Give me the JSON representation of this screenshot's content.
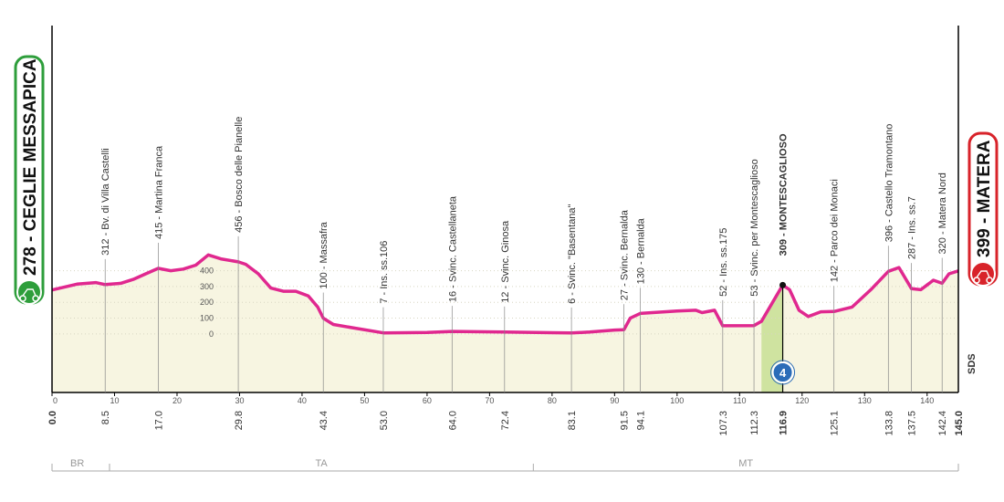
{
  "chart_data": {
    "type": "profile",
    "start": {
      "label": "278 - CEGLIE MESSAPICA",
      "km": {
        "value": 0,
        "label": "0.0"
      },
      "color": "#2e9e3b"
    },
    "finish": {
      "label": "399 - MATERA",
      "km": {
        "value": 145,
        "label": "145.0"
      },
      "color": "#d8232a"
    },
    "profile": {
      "km": [
        0,
        4,
        7,
        8.5,
        11,
        13,
        15,
        17,
        19,
        21,
        23,
        25,
        27,
        29.8,
        31,
        33,
        35,
        37,
        39,
        41,
        42.5,
        43.4,
        45,
        48,
        53,
        60,
        64,
        72.4,
        80,
        83.1,
        86,
        90,
        91.5,
        92.5,
        94.1,
        100,
        103,
        104,
        106,
        107.3,
        112.3,
        113.5,
        116.9,
        118,
        119.5,
        121,
        123,
        125.1,
        128,
        131,
        133.8,
        135.5,
        137.5,
        139,
        141,
        142.4,
        143.5,
        145
      ],
      "elevation": [
        278,
        315,
        325,
        312,
        320,
        345,
        380,
        415,
        400,
        410,
        435,
        500,
        475,
        456,
        440,
        380,
        290,
        270,
        270,
        240,
        170,
        100,
        60,
        40,
        7,
        10,
        16,
        12,
        8,
        6,
        12,
        25,
        27,
        100,
        130,
        145,
        150,
        135,
        150,
        52,
        53,
        80,
        309,
        280,
        150,
        110,
        140,
        142,
        170,
        280,
        396,
        420,
        287,
        280,
        340,
        320,
        380,
        399
      ],
      "color": "#e0288f",
      "fill": "#f7f5e1"
    },
    "waypoints": [
      {
        "label": "312 - Bv. di Villa Castelli",
        "km": 8.5,
        "elevation": 312
      },
      {
        "label": "415 - Martina Franca",
        "km": {
          "value": 17,
          "label": "17.0"
        },
        "elevation": 415
      },
      {
        "label": "456 - Bosco delle Pianelle",
        "km": 29.8,
        "elevation": 456
      },
      {
        "label": "100 - Massafra",
        "km": 43.4,
        "elevation": 100
      },
      {
        "label": "7 - Ins. ss.106",
        "km": {
          "value": 53,
          "label": "53.0"
        },
        "elevation": 7
      },
      {
        "label": "16 - Svinc. Castellaneta",
        "km": {
          "value": 64,
          "label": "64.0"
        },
        "elevation": 16
      },
      {
        "label": "12 - Svinc. Ginosa",
        "km": 72.4,
        "elevation": 12
      },
      {
        "label": "6 - Svinc. \"Basentana\"",
        "km": 83.1,
        "elevation": 6
      },
      {
        "label": "27 - Svinc. Bernalda",
        "km": 91.5,
        "elevation": 27
      },
      {
        "label": "130 - Bernalda",
        "km": 94.1,
        "elevation": 130
      },
      {
        "label": "52 - Ins. ss.175",
        "km": 107.3,
        "elevation": 52
      },
      {
        "label": "53 - Svinc. per Montescaglioso",
        "km": 112.3,
        "elevation": 53
      },
      {
        "label": "309 - MONTESCAGLIOSO",
        "km": 116.9,
        "elevation": 309,
        "highlight": true
      },
      {
        "label": "142 - Parco dei Monaci",
        "km": 125.1,
        "elevation": 142
      },
      {
        "label": "396 - Castello Tramontano",
        "km": 133.8,
        "elevation": 396
      },
      {
        "label": "287 - Ins. ss.7",
        "km": 137.5,
        "elevation": 287
      },
      {
        "label": "320 - Matera Nord",
        "km": 142.4,
        "elevation": 320
      }
    ],
    "climbs": [
      {
        "category": 4,
        "from": 113.5,
        "to": 116.9,
        "color": "#cfe3a0",
        "icon_color": "#2b6cb8"
      }
    ],
    "provinces": [
      {
        "name": "BR",
        "from": 0,
        "to": 9.2
      },
      {
        "name": "TA",
        "from": 9.2,
        "to": 77
      },
      {
        "name": "MT",
        "from": 77,
        "to": 145
      }
    ],
    "sds": "SDS",
    "xlim": [
      0,
      145
    ],
    "xticks": [
      0,
      10,
      20,
      30,
      40,
      50,
      60,
      70,
      80,
      90,
      100,
      110,
      120,
      130,
      140
    ],
    "ylim": [
      -370,
      1950
    ],
    "yticks": [
      0,
      100,
      200,
      300,
      400
    ]
  }
}
